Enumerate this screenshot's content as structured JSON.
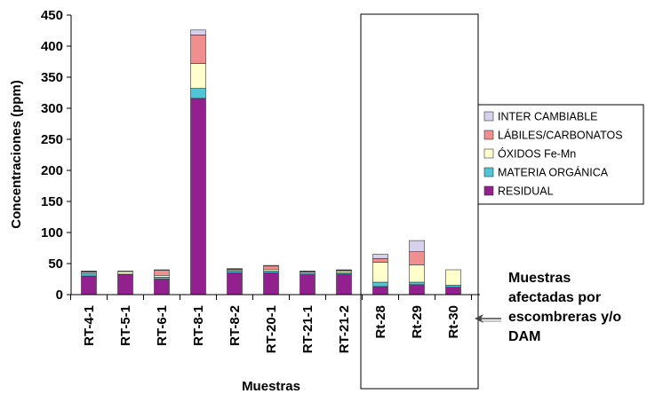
{
  "chart_data": {
    "type": "bar",
    "stacked": true,
    "xlabel": "Muestras",
    "ylabel": "Concentraciones (ppm)",
    "ylim": [
      0,
      450
    ],
    "yticks": [
      0,
      50,
      100,
      150,
      200,
      250,
      300,
      350,
      400,
      450
    ],
    "grid": false,
    "legend_position": "right",
    "categories": [
      "RT-4-1",
      "RT-5-1",
      "RT-6-1",
      "RT-8-1",
      "RT-8-2",
      "RT-20-1",
      "RT-21-1",
      "RT-21-2",
      "Rt-28",
      "Rt-29",
      "Rt-30"
    ],
    "series": [
      {
        "name": "RESIDUAL",
        "color": "#93208f",
        "values": [
          30,
          32,
          25,
          316,
          35,
          35,
          32,
          33,
          13,
          16,
          12
        ]
      },
      {
        "name": "MATERIA ORGÁNICA",
        "color": "#4fc6d8",
        "values": [
          4,
          1,
          3,
          16,
          3,
          3,
          2,
          2,
          7,
          4,
          3
        ]
      },
      {
        "name": "ÓXIDOS Fe-Mn",
        "color": "#ffffcc",
        "values": [
          2,
          4,
          3,
          40,
          2,
          3,
          2,
          3,
          32,
          28,
          25
        ]
      },
      {
        "name": "LÁBILES/CARBONATOS",
        "color": "#f08f8f",
        "values": [
          1,
          0,
          8,
          46,
          1,
          5,
          1,
          1,
          6,
          21,
          0
        ]
      },
      {
        "name": "INTER  CAMBIABLE",
        "color": "#d6d2ec",
        "values": [
          1,
          1,
          1,
          8,
          1,
          1,
          1,
          1,
          7,
          18,
          0
        ]
      }
    ],
    "highlight_group": [
      "Rt-28",
      "Rt-29",
      "Rt-30"
    ],
    "annotation": {
      "lines": [
        "Muestras",
        "afectadas por",
        "escombreras y/o",
        "DAM"
      ]
    }
  }
}
